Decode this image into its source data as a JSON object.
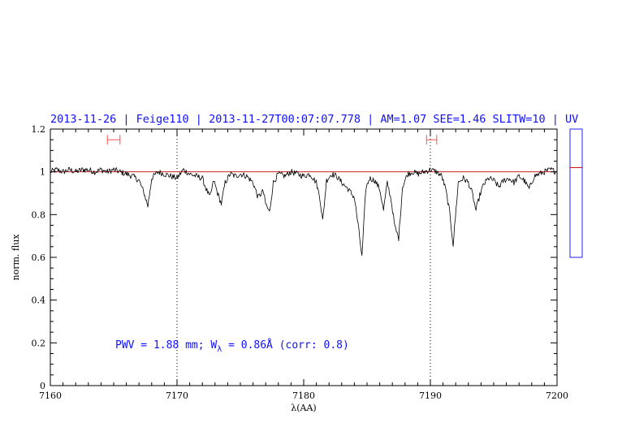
{
  "header": {
    "title": "2013-11-26 | Feige110 | 2013-11-27T00:07:07.778 | AM=1.07 SEE=1.46 SLITW=10 | UV"
  },
  "annotation": {
    "prefix": "PWV = 1.88 mm; W",
    "subscript": "λ",
    "suffix": " = 0.86Å (corr: 0.8)"
  },
  "colors": {
    "spectrum": "#000000",
    "continuum": "#cc2020",
    "text": "#1010ff",
    "markers": "#ff5050",
    "side_box": "#2020ff",
    "side_level": "#cc0000"
  },
  "chart_data": {
    "type": "line",
    "xlabel": "λ(AA)",
    "ylabel": "norm. flux",
    "xlim": [
      7160,
      7200
    ],
    "ylim": [
      0,
      1.2
    ],
    "xticks": [
      7160,
      7170,
      7180,
      7190,
      7200
    ],
    "xtick_labels": [
      "7160",
      "7170",
      "7180",
      "7190",
      "7200"
    ],
    "yticks": [
      0,
      0.2,
      0.4,
      0.6,
      0.8,
      1,
      1.2
    ],
    "ytick_labels": [
      "0",
      "0.2",
      "0.4",
      "0.6",
      "0.8",
      "1",
      "1.2"
    ],
    "vlines_dotted": [
      7170,
      7190
    ],
    "continuum_level": 1.0,
    "range_markers": [
      {
        "x_start": 7164.5,
        "x_end": 7165.5,
        "y": 1.15
      },
      {
        "x_start": 7189.7,
        "x_end": 7190.5,
        "y": 1.15
      }
    ],
    "series": [
      {
        "x": [
          7160.0,
          7160.5,
          7161.0,
          7161.5,
          7162.0,
          7162.5,
          7163.0,
          7163.5,
          7164.0,
          7164.5,
          7165.0,
          7165.5,
          7166.0,
          7166.5,
          7167.0,
          7167.4,
          7167.7,
          7168.0,
          7168.5,
          7169.0,
          7169.5,
          7170.0,
          7170.5,
          7171.0,
          7171.5,
          7172.0,
          7172.3,
          7172.6,
          7172.9,
          7173.2,
          7173.5,
          7173.8,
          7174.2,
          7174.6,
          7175.0,
          7175.5,
          7176.0,
          7176.4,
          7176.8,
          7177.0,
          7177.3,
          7177.6,
          7178.0,
          7178.5,
          7179.0,
          7179.5,
          7180.0,
          7180.5,
          7181.0,
          7181.3,
          7181.5,
          7181.8,
          7182.2,
          7182.6,
          7183.0,
          7183.5,
          7184.0,
          7184.3,
          7184.6,
          7184.9,
          7185.2,
          7185.6,
          7186.0,
          7186.3,
          7186.6,
          7186.9,
          7187.2,
          7187.5,
          7187.8,
          7188.2,
          7188.6,
          7189.0,
          7189.5,
          7190.0,
          7190.5,
          7190.9,
          7191.2,
          7191.5,
          7191.8,
          7192.2,
          7192.6,
          7193.0,
          7193.3,
          7193.6,
          7193.9,
          7194.2,
          7194.6,
          7195.0,
          7195.4,
          7195.8,
          7196.2,
          7196.6,
          7197.0,
          7197.4,
          7197.8,
          7198.2,
          7198.6,
          7199.0,
          7199.5,
          7200.0
        ],
        "y": [
          1.0,
          1.01,
          1.0,
          1.01,
          1.0,
          1.01,
          1.01,
          1.0,
          1.01,
          1.0,
          1.01,
          1.0,
          0.99,
          0.98,
          0.96,
          0.9,
          0.84,
          0.97,
          1.0,
          0.99,
          0.98,
          0.97,
          1.01,
          0.99,
          0.98,
          0.97,
          0.92,
          0.88,
          0.96,
          0.9,
          0.85,
          0.95,
          0.99,
          0.98,
          0.99,
          0.98,
          0.95,
          0.88,
          0.91,
          0.85,
          0.81,
          0.95,
          0.99,
          0.98,
          1.0,
          0.99,
          0.98,
          0.99,
          0.95,
          0.87,
          0.77,
          0.96,
          0.99,
          0.98,
          0.95,
          0.92,
          0.88,
          0.75,
          0.6,
          0.92,
          0.97,
          0.96,
          0.92,
          0.82,
          0.95,
          0.87,
          0.74,
          0.69,
          0.93,
          0.99,
          1.0,
          0.99,
          1.0,
          1.01,
          1.0,
          0.98,
          0.92,
          0.82,
          0.66,
          0.95,
          0.97,
          0.95,
          0.9,
          0.82,
          0.89,
          0.94,
          0.97,
          0.96,
          0.93,
          0.96,
          0.97,
          0.95,
          0.98,
          0.96,
          0.92,
          0.98,
          0.99,
          1.0,
          1.01,
          1.0
        ]
      }
    ],
    "side_indicator": {
      "ylim": [
        0,
        1.2
      ],
      "top": 1.2,
      "bottom": 0.6,
      "level": 1.02
    }
  }
}
